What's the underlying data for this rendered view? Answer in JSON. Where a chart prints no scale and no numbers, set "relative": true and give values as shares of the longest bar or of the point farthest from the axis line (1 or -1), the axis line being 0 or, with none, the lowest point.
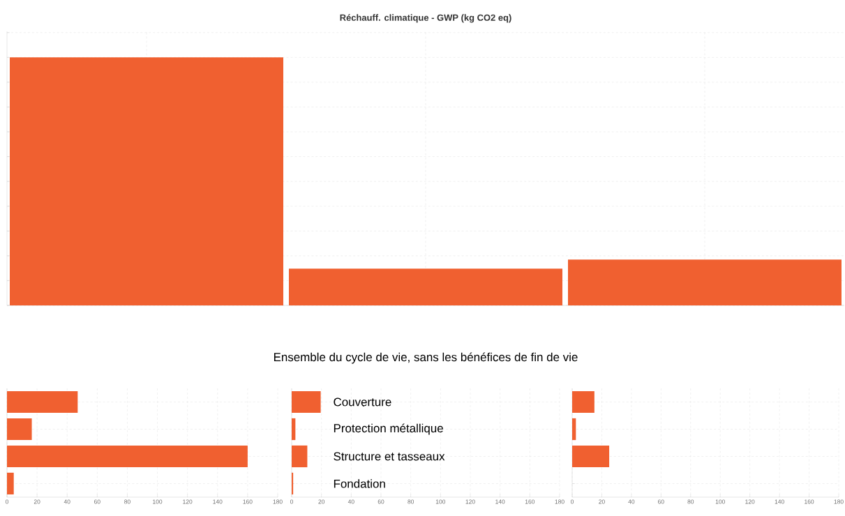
{
  "chart_data": [
    {
      "type": "bar",
      "title": "Réchauff. climatique - GWP (kg CO2 eq)",
      "categories": [
        null,
        null,
        null
      ],
      "values": [
        1,
        0.148,
        0.185
      ],
      "relative": true,
      "color": "#f06030",
      "grid": true
    },
    {
      "type": "bar",
      "orientation": "horizontal",
      "categories": [
        null,
        null,
        null,
        null
      ],
      "values": [
        47,
        16.5,
        160,
        4.5
      ],
      "color": "#f06030",
      "xlim": [
        0,
        180
      ],
      "xticks": [
        0,
        20,
        40,
        60,
        80,
        100,
        120,
        140,
        160,
        180
      ],
      "grid": true
    },
    {
      "type": "bar",
      "orientation": "horizontal",
      "title": "Ensemble du cycle de vie, sans les bénéfices de fin de vie",
      "categories": [
        "Couverture",
        "Protection métallique",
        "Structure et tasseaux",
        "Fondation"
      ],
      "values": [
        19.5,
        2.5,
        10.5,
        1
      ],
      "color": "#f06030",
      "xlim": [
        0,
        180
      ],
      "xticks": [
        0,
        20,
        40,
        60,
        80,
        100,
        120,
        140,
        160,
        180
      ],
      "grid": true
    },
    {
      "type": "bar",
      "orientation": "horizontal",
      "categories": [
        null,
        null,
        null,
        null
      ],
      "values": [
        15,
        2.5,
        25,
        0
      ],
      "color": "#f06030",
      "xlim": [
        0,
        180
      ],
      "xticks": [
        0,
        20,
        40,
        60,
        80,
        100,
        120,
        140,
        160,
        180
      ],
      "grid": true
    }
  ]
}
